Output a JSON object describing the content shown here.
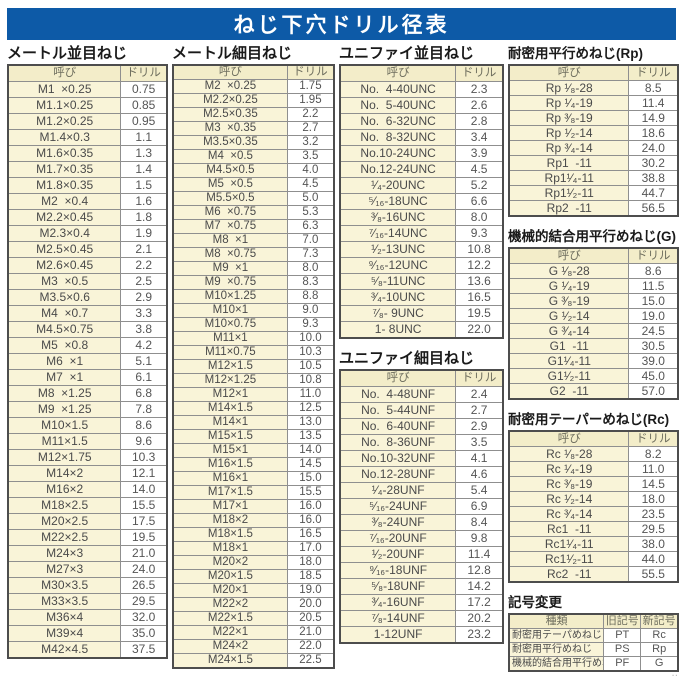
{
  "title": "ねじ下穴ドリル径表",
  "colors": {
    "title_bar": "#0d5aa7",
    "header_cell": "#f3edc9",
    "name_cell": "#f9f4d8",
    "value_cell": "#ffffff",
    "outer_border": "#4d4d4d"
  },
  "corner_mark": "‥",
  "sections": {
    "metric_coarse": {
      "title": "メートル並目ねじ",
      "headers": [
        "呼び",
        "ドリル"
      ],
      "rows": [
        [
          "M1  ×0.25",
          "0.75"
        ],
        [
          "M1.1×0.25",
          "0.85"
        ],
        [
          "M1.2×0.25",
          "0.95"
        ],
        [
          "M1.4×0.3",
          "1.1"
        ],
        [
          "M1.6×0.35",
          "1.3"
        ],
        [
          "M1.7×0.35",
          "1.4"
        ],
        [
          "M1.8×0.35",
          "1.5"
        ],
        [
          "M2  ×0.4",
          "1.6"
        ],
        [
          "M2.2×0.45",
          "1.8"
        ],
        [
          "M2.3×0.4",
          "1.9"
        ],
        [
          "M2.5×0.45",
          "2.1"
        ],
        [
          "M2.6×0.45",
          "2.2"
        ],
        [
          "M3  ×0.5",
          "2.5"
        ],
        [
          "M3.5×0.6",
          "2.9"
        ],
        [
          "M4  ×0.7",
          "3.3"
        ],
        [
          "M4.5×0.75",
          "3.8"
        ],
        [
          "M5  ×0.8",
          "4.2"
        ],
        [
          "M6  ×1",
          "5.1"
        ],
        [
          "M7  ×1",
          "6.1"
        ],
        [
          "M8  ×1.25",
          "6.8"
        ],
        [
          "M9  ×1.25",
          "7.8"
        ],
        [
          "M10×1.5",
          "8.6"
        ],
        [
          "M11×1.5",
          "9.6"
        ],
        [
          "M12×1.75",
          "10.3"
        ],
        [
          "M14×2",
          "12.1"
        ],
        [
          "M16×2",
          "14.0"
        ],
        [
          "M18×2.5",
          "15.5"
        ],
        [
          "M20×2.5",
          "17.5"
        ],
        [
          "M22×2.5",
          "19.5"
        ],
        [
          "M24×3",
          "21.0"
        ],
        [
          "M27×3",
          "24.0"
        ],
        [
          "M30×3.5",
          "26.5"
        ],
        [
          "M33×3.5",
          "29.5"
        ],
        [
          "M36×4",
          "32.0"
        ],
        [
          "M39×4",
          "35.0"
        ],
        [
          "M42×4.5",
          "37.5"
        ]
      ]
    },
    "metric_fine": {
      "title": "メートル細目ねじ",
      "headers": [
        "呼び",
        "ドリル"
      ],
      "rows": [
        [
          "M2  ×0.25",
          "1.75"
        ],
        [
          "M2.2×0.25",
          "1.95"
        ],
        [
          "M2.5×0.35",
          "2.2"
        ],
        [
          "M3  ×0.35",
          "2.7"
        ],
        [
          "M3.5×0.35",
          "3.2"
        ],
        [
          "M4  ×0.5",
          "3.5"
        ],
        [
          "M4.5×0.5",
          "4.0"
        ],
        [
          "M5  ×0.5",
          "4.5"
        ],
        [
          "M5.5×0.5",
          "5.0"
        ],
        [
          "M6  ×0.75",
          "5.3"
        ],
        [
          "M7  ×0.75",
          "6.3"
        ],
        [
          "M8  ×1",
          "7.0"
        ],
        [
          "M8  ×0.75",
          "7.3"
        ],
        [
          "M9  ×1",
          "8.0"
        ],
        [
          "M9  ×0.75",
          "8.3"
        ],
        [
          "M10×1.25",
          "8.8"
        ],
        [
          "M10×1",
          "9.0"
        ],
        [
          "M10×0.75",
          "9.3"
        ],
        [
          "M11×1",
          "10.0"
        ],
        [
          "M11×0.75",
          "10.3"
        ],
        [
          "M12×1.5",
          "10.5"
        ],
        [
          "M12×1.25",
          "10.8"
        ],
        [
          "M12×1",
          "11.0"
        ],
        [
          "M14×1.5",
          "12.5"
        ],
        [
          "M14×1",
          "13.0"
        ],
        [
          "M15×1.5",
          "13.5"
        ],
        [
          "M15×1",
          "14.0"
        ],
        [
          "M16×1.5",
          "14.5"
        ],
        [
          "M16×1",
          "15.0"
        ],
        [
          "M17×1.5",
          "15.5"
        ],
        [
          "M17×1",
          "16.0"
        ],
        [
          "M18×2",
          "16.0"
        ],
        [
          "M18×1.5",
          "16.5"
        ],
        [
          "M18×1",
          "17.0"
        ],
        [
          "M20×2",
          "18.0"
        ],
        [
          "M20×1.5",
          "18.5"
        ],
        [
          "M20×1",
          "19.0"
        ],
        [
          "M22×2",
          "20.0"
        ],
        [
          "M22×1.5",
          "20.5"
        ],
        [
          "M22×1",
          "21.0"
        ],
        [
          "M24×2",
          "22.0"
        ],
        [
          "M24×1.5",
          "22.5"
        ]
      ]
    },
    "unified_coarse": {
      "title": "ユニファイ並目ねじ",
      "headers": [
        "呼び",
        "ドリル"
      ],
      "rows": [
        [
          "No.  4-40UNC",
          "2.3"
        ],
        [
          "No.  5-40UNC",
          "2.6"
        ],
        [
          "No.  6-32UNC",
          "2.8"
        ],
        [
          "No.  8-32UNC",
          "3.4"
        ],
        [
          "No.10-24UNC",
          "3.9"
        ],
        [
          "No.12-24UNC",
          "4.5"
        ],
        [
          "¹⁄₄-20UNC",
          "5.2"
        ],
        [
          "⁵⁄₁₆-18UNC",
          "6.6"
        ],
        [
          "³⁄₈-16UNC",
          "8.0"
        ],
        [
          "⁷⁄₁₆-14UNC",
          "9.3"
        ],
        [
          "¹⁄₂-13UNC",
          "10.8"
        ],
        [
          "⁹⁄₁₆-12UNC",
          "12.2"
        ],
        [
          "⁵⁄₈-11UNC",
          "13.6"
        ],
        [
          "³⁄₄-10UNC",
          "16.5"
        ],
        [
          "⁷⁄₈- 9UNC",
          "19.5"
        ],
        [
          "1- 8UNC",
          "22.0"
        ]
      ]
    },
    "unified_fine": {
      "title": "ユニファイ細目ねじ",
      "headers": [
        "呼び",
        "ドリル"
      ],
      "rows": [
        [
          "No.  4-48UNF",
          "2.4"
        ],
        [
          "No.  5-44UNF",
          "2.7"
        ],
        [
          "No.  6-40UNF",
          "2.9"
        ],
        [
          "No.  8-36UNF",
          "3.5"
        ],
        [
          "No.10-32UNF",
          "4.1"
        ],
        [
          "No.12-28UNF",
          "4.6"
        ],
        [
          "¹⁄₄-28UNF",
          "5.4"
        ],
        [
          "⁵⁄₁₆-24UNF",
          "6.9"
        ],
        [
          "³⁄₈-24UNF",
          "8.4"
        ],
        [
          "⁷⁄₁₆-20UNF",
          "9.8"
        ],
        [
          "¹⁄₂-20UNF",
          "11.4"
        ],
        [
          "⁹⁄₁₆-18UNF",
          "12.8"
        ],
        [
          "⁵⁄₈-18UNF",
          "14.2"
        ],
        [
          "³⁄₄-16UNF",
          "17.2"
        ],
        [
          "⁷⁄₈-14UNF",
          "20.2"
        ],
        [
          "1-12UNF",
          "23.2"
        ]
      ]
    },
    "rp": {
      "title": "耐密用平行めねじ(Rp)",
      "headers": [
        "呼び",
        "ドリル"
      ],
      "rows": [
        [
          "Rp ¹⁄₈-28",
          "8.5"
        ],
        [
          "Rp ¹⁄₄-19",
          "11.4"
        ],
        [
          "Rp ³⁄₈-19",
          "14.9"
        ],
        [
          "Rp ¹⁄₂-14",
          "18.6"
        ],
        [
          "Rp ³⁄₄-14",
          "24.0"
        ],
        [
          "Rp1  -11",
          "30.2"
        ],
        [
          "Rp1¹⁄₄-11",
          "38.8"
        ],
        [
          "Rp1¹⁄₂-11",
          "44.7"
        ],
        [
          "Rp2  -11",
          "56.5"
        ]
      ]
    },
    "g": {
      "title": "機械的結合用平行めねじ(G)",
      "headers": [
        "呼び",
        "ドリル"
      ],
      "rows": [
        [
          "G ¹⁄₈-28",
          "8.6"
        ],
        [
          "G ¹⁄₄-19",
          "11.5"
        ],
        [
          "G ³⁄₈-19",
          "15.0"
        ],
        [
          "G ¹⁄₂-14",
          "19.0"
        ],
        [
          "G ³⁄₄-14",
          "24.5"
        ],
        [
          "G1  -11",
          "30.5"
        ],
        [
          "G1¹⁄₄-11",
          "39.0"
        ],
        [
          "G1¹⁄₂-11",
          "45.0"
        ],
        [
          "G2  -11",
          "57.0"
        ]
      ]
    },
    "rc": {
      "title": "耐密用テーパーめねじ(Rc)",
      "headers": [
        "呼び",
        "ドリル"
      ],
      "rows": [
        [
          "Rc ¹⁄₈-28",
          "8.2"
        ],
        [
          "Rc ¹⁄₄-19",
          "11.0"
        ],
        [
          "Rc ³⁄₈-19",
          "14.5"
        ],
        [
          "Rc ¹⁄₂-14",
          "18.0"
        ],
        [
          "Rc ³⁄₄-14",
          "23.5"
        ],
        [
          "Rc1  -11",
          "29.5"
        ],
        [
          "Rc1¹⁄₄-11",
          "38.0"
        ],
        [
          "Rc1¹⁄₂-11",
          "44.0"
        ],
        [
          "Rc2  -11",
          "55.5"
        ]
      ]
    },
    "symbol_change": {
      "title": "記号変更",
      "headers": [
        "種類",
        "旧記号",
        "新記号"
      ],
      "rows": [
        [
          "耐密用テーパめねじ",
          "PT",
          "Rc"
        ],
        [
          "耐密用平行めねじ",
          "PS",
          "Rp"
        ],
        [
          "機械的結合用平行めねじ",
          "PF",
          "G"
        ]
      ]
    }
  }
}
